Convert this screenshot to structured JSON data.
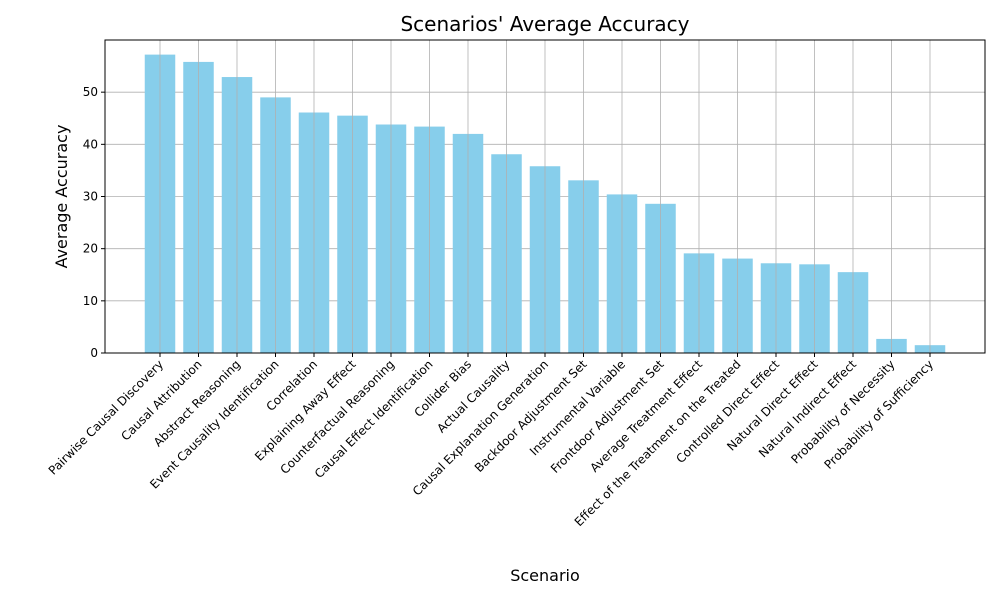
{
  "chart_data": {
    "type": "bar",
    "title": "Scenarios' Average Accuracy",
    "xlabel": "Scenario",
    "ylabel": "Average Accuracy",
    "categories": [
      "Pairwise Causal Discovery",
      "Causal Attribution",
      "Abstract Reasoning",
      "Event Causality Identification",
      "Correlation",
      "Explaining Away Effect",
      "Counterfactual Reasoning",
      "Causal Effect Identification",
      "Collider Bias",
      "Actual Causality",
      "Causal Explanation Generation",
      "Backdoor Adjustment Set",
      "Instrumental Variable",
      "Frontdoor Adjustment Set",
      "Average Treatment Effect",
      "Effect of the Treatment on the Treated",
      "Controlled Direct Effect",
      "Natural Direct Effect",
      "Natural Indirect Effect",
      "Probability of Necessity",
      "Probability of Sufficiency"
    ],
    "values": [
      57.2,
      55.8,
      52.9,
      49.0,
      46.1,
      45.5,
      43.8,
      43.4,
      42.0,
      38.1,
      35.8,
      33.1,
      30.4,
      28.6,
      19.1,
      18.1,
      17.2,
      17.0,
      15.5,
      2.7,
      1.5
    ],
    "yticks": [
      0,
      10,
      20,
      30,
      40,
      50
    ],
    "ylim": [
      0,
      60
    ],
    "grid": true,
    "bar_color": "#87ceeb"
  }
}
